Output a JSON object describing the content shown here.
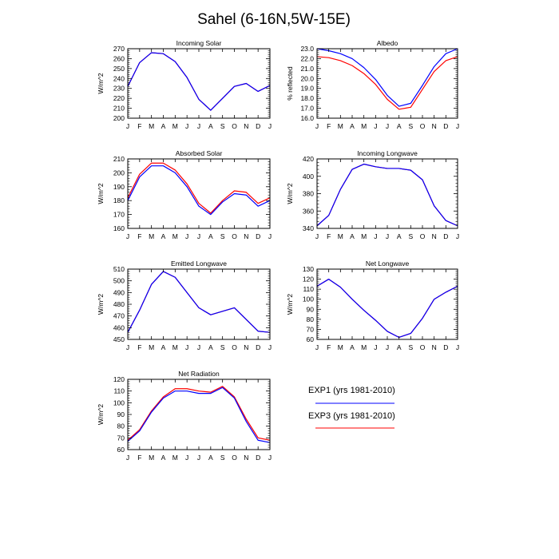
{
  "figure": {
    "title": "Sahel (6-16N,5W-15E)"
  },
  "colors": {
    "EXP1": "#0000ff",
    "EXP3": "#ff0000",
    "axes": "#000000"
  },
  "legend": {
    "entries": [
      {
        "series": "EXP1",
        "label": "EXP1 (yrs 1981-2010)"
      },
      {
        "series": "EXP3",
        "label": "EXP3 (yrs 1981-2010)"
      }
    ]
  },
  "chart_data": [
    {
      "type": "line",
      "title": "Incoming Solar",
      "ylabel": "W/m^2",
      "categories": [
        "J",
        "F",
        "M",
        "A",
        "M",
        "J",
        "J",
        "A",
        "S",
        "O",
        "N",
        "D",
        "J"
      ],
      "ylim": [
        200,
        270
      ],
      "yticks": [
        200,
        210,
        220,
        230,
        240,
        250,
        260,
        270
      ],
      "ytick_labels": [
        "200",
        "210",
        "220",
        "230",
        "240",
        "250",
        "260",
        "270"
      ],
      "series": [
        {
          "name": "EXP1",
          "values": [
            232,
            256,
            266,
            265,
            257,
            241,
            219,
            208,
            220,
            232,
            235,
            227,
            233
          ]
        },
        {
          "name": "EXP3",
          "values": [
            232,
            256,
            266,
            265,
            257,
            241,
            219,
            208,
            220,
            232,
            235,
            227,
            233
          ]
        }
      ]
    },
    {
      "type": "line",
      "title": "Albedo",
      "ylabel": "% reflected",
      "categories": [
        "J",
        "F",
        "M",
        "A",
        "M",
        "J",
        "J",
        "A",
        "S",
        "O",
        "N",
        "D",
        "J"
      ],
      "ylim": [
        16,
        23
      ],
      "yticks": [
        16,
        17,
        18,
        19,
        20,
        21,
        22,
        23
      ],
      "ytick_labels": [
        "16.0",
        "17.0",
        "18.0",
        "19.0",
        "20.0",
        "21.0",
        "22.0",
        "23.0"
      ],
      "series": [
        {
          "name": "EXP1",
          "values": [
            23.0,
            22.8,
            22.5,
            22.0,
            21.1,
            19.9,
            18.3,
            17.2,
            17.5,
            19.3,
            21.2,
            22.5,
            23.0
          ]
        },
        {
          "name": "EXP3",
          "values": [
            22.2,
            22.1,
            21.8,
            21.3,
            20.5,
            19.4,
            17.9,
            16.9,
            17.1,
            18.9,
            20.7,
            21.8,
            22.2
          ]
        }
      ]
    },
    {
      "type": "line",
      "title": "Absorbed Solar",
      "ylabel": "W/m^2",
      "categories": [
        "J",
        "F",
        "M",
        "A",
        "M",
        "J",
        "J",
        "A",
        "S",
        "O",
        "N",
        "D",
        "J"
      ],
      "ylim": [
        160,
        210
      ],
      "yticks": [
        160,
        170,
        180,
        190,
        200,
        210
      ],
      "ytick_labels": [
        "160",
        "170",
        "180",
        "190",
        "200",
        "210"
      ],
      "series": [
        {
          "name": "EXP1",
          "values": [
            180,
            197,
            205,
            205,
            200,
            190,
            176,
            170,
            179,
            185,
            184,
            176,
            180
          ]
        },
        {
          "name": "EXP3",
          "values": [
            182,
            199,
            207,
            207,
            202,
            192,
            178,
            171,
            180,
            187,
            186,
            178,
            182
          ]
        }
      ]
    },
    {
      "type": "line",
      "title": "Incoming Longwave",
      "ylabel": "W/m^2",
      "categories": [
        "J",
        "F",
        "M",
        "A",
        "M",
        "J",
        "J",
        "A",
        "S",
        "O",
        "N",
        "D",
        "J"
      ],
      "ylim": [
        340,
        420
      ],
      "yticks": [
        340,
        360,
        380,
        400,
        420
      ],
      "ytick_labels": [
        "340",
        "360",
        "380",
        "400",
        "420"
      ],
      "series": [
        {
          "name": "EXP1",
          "values": [
            343,
            355,
            385,
            408,
            414,
            411,
            409,
            409,
            407,
            396,
            366,
            349,
            343
          ]
        },
        {
          "name": "EXP3",
          "values": [
            343,
            355,
            385,
            408,
            414,
            411,
            409,
            409,
            407,
            396,
            366,
            349,
            343
          ]
        }
      ]
    },
    {
      "type": "line",
      "title": "Emitted Longwave",
      "ylabel": "W/m^2",
      "categories": [
        "J",
        "F",
        "M",
        "A",
        "M",
        "J",
        "J",
        "A",
        "S",
        "O",
        "N",
        "D",
        "J"
      ],
      "ylim": [
        450,
        510
      ],
      "yticks": [
        450,
        460,
        470,
        480,
        490,
        500,
        510
      ],
      "ytick_labels": [
        "450",
        "460",
        "470",
        "480",
        "490",
        "500",
        "510"
      ],
      "series": [
        {
          "name": "EXP1",
          "values": [
            456,
            475,
            497,
            508,
            503,
            490,
            477,
            471,
            474,
            477,
            467,
            457,
            456
          ]
        },
        {
          "name": "EXP3",
          "values": [
            456,
            475,
            497,
            508,
            503,
            490,
            477,
            471,
            474,
            477,
            467,
            457,
            456
          ]
        }
      ]
    },
    {
      "type": "line",
      "title": "Net Longwave",
      "ylabel": "W/m^2",
      "categories": [
        "J",
        "F",
        "M",
        "A",
        "M",
        "J",
        "J",
        "A",
        "S",
        "O",
        "N",
        "D",
        "J"
      ],
      "ylim": [
        60,
        130
      ],
      "yticks": [
        60,
        70,
        80,
        90,
        100,
        110,
        120,
        130
      ],
      "ytick_labels": [
        "60",
        "70",
        "80",
        "90",
        "100",
        "110",
        "120",
        "130"
      ],
      "series": [
        {
          "name": "EXP1",
          "values": [
            113,
            120,
            112,
            100,
            89,
            79,
            68,
            62,
            66,
            81,
            100,
            107,
            113
          ]
        },
        {
          "name": "EXP3",
          "values": [
            113,
            120,
            112,
            100,
            89,
            79,
            68,
            62,
            66,
            81,
            100,
            107,
            113
          ]
        }
      ]
    },
    {
      "type": "line",
      "title": "Net Radiation",
      "ylabel": "W/m^2",
      "categories": [
        "J",
        "F",
        "M",
        "A",
        "M",
        "J",
        "J",
        "A",
        "S",
        "O",
        "N",
        "D",
        "J"
      ],
      "ylim": [
        60,
        120
      ],
      "yticks": [
        60,
        70,
        80,
        90,
        100,
        110,
        120
      ],
      "ytick_labels": [
        "60",
        "70",
        "80",
        "90",
        "100",
        "110",
        "120"
      ],
      "series": [
        {
          "name": "EXP1",
          "values": [
            67,
            76,
            92,
            104,
            110,
            110,
            108,
            108,
            113,
            104,
            84,
            68,
            66
          ]
        },
        {
          "name": "EXP3",
          "values": [
            68,
            77,
            93,
            105,
            112,
            112,
            110,
            109,
            114,
            105,
            86,
            70,
            68
          ]
        }
      ]
    }
  ]
}
